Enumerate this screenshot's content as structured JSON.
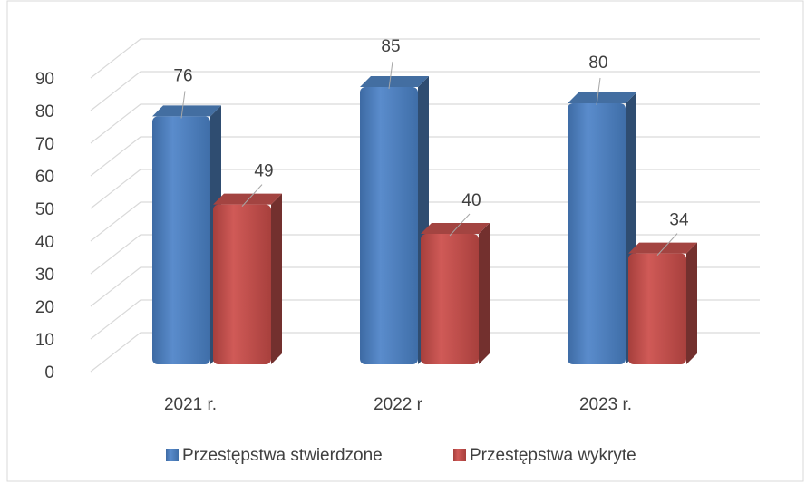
{
  "chart_data": {
    "type": "bar3d",
    "categories": [
      "2021 r.",
      "2022 r",
      "2023 r."
    ],
    "series": [
      {
        "name": "Przestępstwa stwierdzone",
        "color": "#4f81bd",
        "values": [
          76,
          85,
          80
        ]
      },
      {
        "name": "Przestępstwa wykryte",
        "color": "#c0504d",
        "values": [
          49,
          40,
          34
        ]
      }
    ],
    "ylim": [
      0,
      90
    ],
    "yticks": [
      0,
      10,
      20,
      30,
      40,
      50,
      60,
      70,
      80,
      90
    ],
    "grid": true,
    "legend": "bottom"
  }
}
